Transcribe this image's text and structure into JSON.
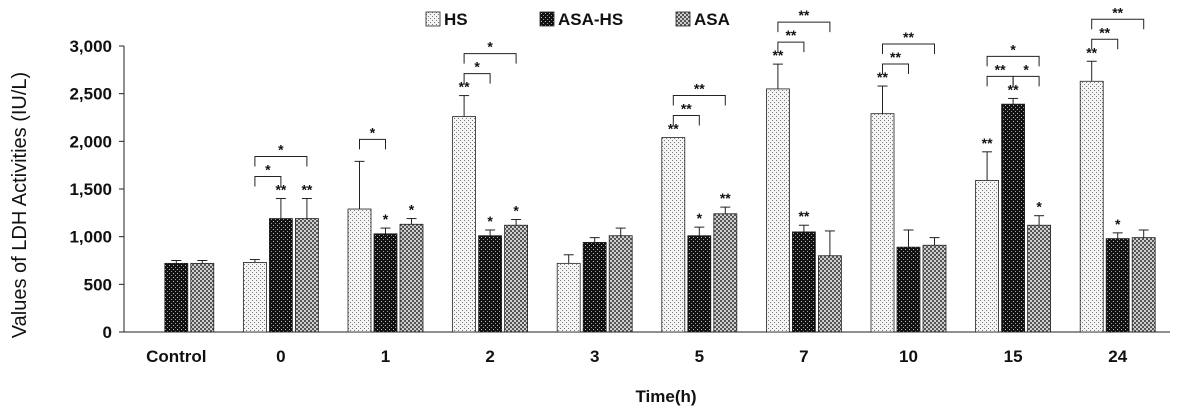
{
  "chart_data": {
    "type": "bar",
    "title": "",
    "xlabel": "Time(h)",
    "ylabel": "Values of LDH Activities (IU/L)",
    "ylim": [
      0,
      3000
    ],
    "yticks": [
      "0",
      "500",
      "1,000",
      "1,500",
      "2,000",
      "2,500",
      "3,000"
    ],
    "categories": [
      "Control",
      "0",
      "1",
      "2",
      "3",
      "5",
      "7",
      "10",
      "15",
      "24"
    ],
    "legend_position": "top",
    "grid": false,
    "series": [
      {
        "name": "HS",
        "pattern": "dots-light",
        "values": [
          null,
          730,
          1290,
          2260,
          720,
          2040,
          2550,
          2290,
          1590,
          2630
        ],
        "errors": [
          null,
          30,
          500,
          220,
          90,
          0,
          260,
          290,
          300,
          210
        ],
        "marks": [
          "",
          "",
          "",
          "**",
          "",
          "**",
          "**",
          "**",
          "**",
          "**"
        ]
      },
      {
        "name": "ASA-HS",
        "pattern": "dots-dark",
        "values": [
          720,
          1190,
          1030,
          1010,
          940,
          1010,
          1050,
          890,
          2390,
          980
        ],
        "errors": [
          30,
          210,
          60,
          60,
          50,
          90,
          70,
          180,
          60,
          60
        ],
        "marks": [
          "",
          "**",
          "*",
          "*",
          "",
          "*",
          "**",
          "",
          "**",
          "*"
        ]
      },
      {
        "name": "ASA",
        "pattern": "checker",
        "values": [
          720,
          1190,
          1130,
          1120,
          1010,
          1240,
          800,
          910,
          1120,
          990
        ],
        "errors": [
          30,
          210,
          60,
          60,
          80,
          70,
          260,
          80,
          100,
          80
        ],
        "marks": [
          "",
          "**",
          "*",
          "*",
          "",
          "**",
          "",
          "",
          "*",
          ""
        ]
      }
    ],
    "brackets": [
      {
        "category": "0",
        "from": "HS",
        "to": "ASA-HS",
        "label": "*",
        "level": 1
      },
      {
        "category": "0",
        "from": "HS",
        "to": "ASA",
        "label": "*",
        "level": 2
      },
      {
        "category": "1",
        "from": "HS",
        "to": "ASA-HS",
        "label": "*",
        "level": 1
      },
      {
        "category": "2",
        "from": "HS",
        "to": "ASA-HS",
        "label": "*",
        "level": 1
      },
      {
        "category": "2",
        "from": "HS",
        "to": "ASA",
        "label": "*",
        "level": 2
      },
      {
        "category": "5",
        "from": "HS",
        "to": "ASA-HS",
        "label": "**",
        "level": 1
      },
      {
        "category": "5",
        "from": "HS",
        "to": "ASA",
        "label": "**",
        "level": 2
      },
      {
        "category": "7",
        "from": "HS",
        "to": "ASA-HS",
        "label": "**",
        "level": 1
      },
      {
        "category": "7",
        "from": "HS",
        "to": "ASA",
        "label": "**",
        "level": 2
      },
      {
        "category": "10",
        "from": "HS",
        "to": "ASA-HS",
        "label": "**",
        "level": 1
      },
      {
        "category": "10",
        "from": "HS",
        "to": "ASA",
        "label": "**",
        "level": 2
      },
      {
        "category": "15",
        "from": "HS",
        "to": "ASA-HS",
        "label": "**",
        "level": 1
      },
      {
        "category": "15",
        "from": "ASA-HS",
        "to": "ASA",
        "label": "*",
        "level": 1
      },
      {
        "category": "15",
        "from": "HS",
        "to": "ASA",
        "label": "*",
        "level": 2
      },
      {
        "category": "24",
        "from": "HS",
        "to": "ASA-HS",
        "label": "**",
        "level": 1
      },
      {
        "category": "24",
        "from": "HS",
        "to": "ASA",
        "label": "**",
        "level": 2
      }
    ]
  }
}
